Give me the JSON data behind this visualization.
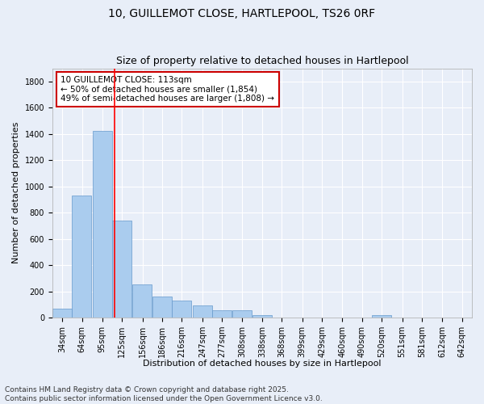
{
  "title1": "10, GUILLEMOT CLOSE, HARTLEPOOL, TS26 0RF",
  "title2": "Size of property relative to detached houses in Hartlepool",
  "xlabel": "Distribution of detached houses by size in Hartlepool",
  "ylabel": "Number of detached properties",
  "categories": [
    "34sqm",
    "64sqm",
    "95sqm",
    "125sqm",
    "156sqm",
    "186sqm",
    "216sqm",
    "247sqm",
    "277sqm",
    "308sqm",
    "338sqm",
    "368sqm",
    "399sqm",
    "429sqm",
    "460sqm",
    "490sqm",
    "520sqm",
    "551sqm",
    "581sqm",
    "612sqm",
    "642sqm"
  ],
  "values": [
    70,
    930,
    1420,
    740,
    250,
    160,
    130,
    90,
    55,
    55,
    20,
    0,
    0,
    0,
    0,
    0,
    20,
    0,
    0,
    0,
    0
  ],
  "bin_width": 30,
  "bin_starts": [
    19,
    49,
    80,
    110,
    141,
    171,
    201,
    232,
    262,
    293,
    323,
    353,
    384,
    414,
    445,
    475,
    505,
    536,
    566,
    597,
    627
  ],
  "bar_color": "#aaccee",
  "bar_edge_color": "#6699cc",
  "red_line_x": 113,
  "annotation_text": "10 GUILLEMOT CLOSE: 113sqm\n← 50% of detached houses are smaller (1,854)\n49% of semi-detached houses are larger (1,808) →",
  "annotation_box_color": "#ffffff",
  "annotation_box_edge": "#cc0000",
  "ylim": [
    0,
    1900
  ],
  "yticks": [
    0,
    200,
    400,
    600,
    800,
    1000,
    1200,
    1400,
    1600,
    1800
  ],
  "footnote": "Contains HM Land Registry data © Crown copyright and database right 2025.\nContains public sector information licensed under the Open Government Licence v3.0.",
  "bg_color": "#e8eef8",
  "grid_color": "#ffffff",
  "title_fontsize": 10,
  "subtitle_fontsize": 9,
  "axis_label_fontsize": 8,
  "tick_fontsize": 7,
  "annot_fontsize": 7.5,
  "footnote_fontsize": 6.5
}
